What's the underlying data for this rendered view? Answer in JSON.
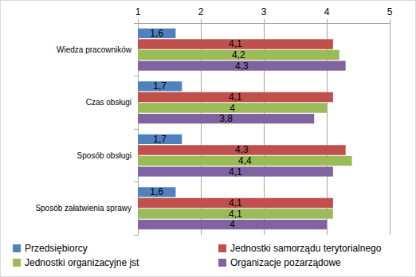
{
  "chart_data": {
    "type": "bar",
    "orientation": "horizontal",
    "categories": [
      "Wiedza pracowników",
      "Czas obsługi",
      "Sposób obsługi",
      "Sposób załatwienia sprawy"
    ],
    "series": [
      {
        "name": "Przedsiębiorcy",
        "color": "#4f81bd",
        "values": [
          1.6,
          1.7,
          1.7,
          1.6
        ],
        "value_labels": [
          "1,6",
          "1,7",
          "1,7",
          "1,6"
        ]
      },
      {
        "name": "Jednostki samorządu terytorialnego",
        "color": "#c0504d",
        "values": [
          4.1,
          4.1,
          4.3,
          4.1
        ],
        "value_labels": [
          "4,1",
          "4,1",
          "4,3",
          "4,1"
        ]
      },
      {
        "name": "Jednostki organizacyjne jst",
        "color": "#9bbb59",
        "values": [
          4.2,
          4,
          4.4,
          4.1
        ],
        "value_labels": [
          "4,2",
          "4",
          "4,4",
          "4,1"
        ]
      },
      {
        "name": "Organizacje pozarządowe",
        "color": "#8064a2",
        "values": [
          4.3,
          3.8,
          4.1,
          4
        ],
        "value_labels": [
          "4,3",
          "3,8",
          "4,1",
          "4"
        ]
      }
    ],
    "xlim": [
      1,
      5
    ],
    "xticks": [
      1,
      2,
      3,
      4,
      5
    ],
    "grid": true,
    "legend": "bottom",
    "data_labels": true
  }
}
